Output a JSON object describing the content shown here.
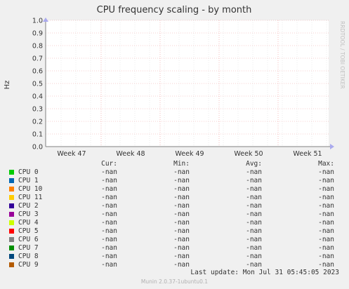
{
  "chart_data": {
    "type": "line",
    "title": "CPU frequency scaling - by month",
    "ylabel": "Hz",
    "watermark": "RRDTOOL / TOBI OETIKER",
    "ylim": [
      0.0,
      1.0
    ],
    "yticks": [
      "0.0",
      "0.1",
      "0.2",
      "0.3",
      "0.4",
      "0.5",
      "0.6",
      "0.7",
      "0.8",
      "0.9",
      "1.0"
    ],
    "xticks": [
      "Week 47",
      "Week 48",
      "Week 49",
      "Week 50",
      "Week 51"
    ],
    "grid": true,
    "series": [
      {
        "name": "CPU 0",
        "color": "#00cc00",
        "values": []
      },
      {
        "name": "CPU 1",
        "color": "#0066b3",
        "values": []
      },
      {
        "name": "CPU 10",
        "color": "#ff8000",
        "values": []
      },
      {
        "name": "CPU 11",
        "color": "#ffcc00",
        "values": []
      },
      {
        "name": "CPU 2",
        "color": "#330099",
        "values": []
      },
      {
        "name": "CPU 3",
        "color": "#990099",
        "values": []
      },
      {
        "name": "CPU 4",
        "color": "#ccff00",
        "values": []
      },
      {
        "name": "CPU 5",
        "color": "#ff0000",
        "values": []
      },
      {
        "name": "CPU 6",
        "color": "#808080",
        "values": []
      },
      {
        "name": "CPU 7",
        "color": "#008f00",
        "values": []
      },
      {
        "name": "CPU 8",
        "color": "#00487d",
        "values": []
      },
      {
        "name": "CPU 9",
        "color": "#b35a00",
        "values": []
      }
    ]
  },
  "legend": {
    "headers": {
      "cur": "Cur:",
      "min": "Min:",
      "avg": "Avg:",
      "max": "Max:"
    },
    "rows": [
      {
        "name": "CPU 0",
        "color": "#00cc00",
        "cur": "-nan",
        "min": "-nan",
        "avg": "-nan",
        "max": "-nan"
      },
      {
        "name": "CPU 1",
        "color": "#0066b3",
        "cur": "-nan",
        "min": "-nan",
        "avg": "-nan",
        "max": "-nan"
      },
      {
        "name": "CPU 10",
        "color": "#ff8000",
        "cur": "-nan",
        "min": "-nan",
        "avg": "-nan",
        "max": "-nan"
      },
      {
        "name": "CPU 11",
        "color": "#ffcc00",
        "cur": "-nan",
        "min": "-nan",
        "avg": "-nan",
        "max": "-nan"
      },
      {
        "name": "CPU 2",
        "color": "#330099",
        "cur": "-nan",
        "min": "-nan",
        "avg": "-nan",
        "max": "-nan"
      },
      {
        "name": "CPU 3",
        "color": "#990099",
        "cur": "-nan",
        "min": "-nan",
        "avg": "-nan",
        "max": "-nan"
      },
      {
        "name": "CPU 4",
        "color": "#ccff00",
        "cur": "-nan",
        "min": "-nan",
        "avg": "-nan",
        "max": "-nan"
      },
      {
        "name": "CPU 5",
        "color": "#ff0000",
        "cur": "-nan",
        "min": "-nan",
        "avg": "-nan",
        "max": "-nan"
      },
      {
        "name": "CPU 6",
        "color": "#808080",
        "cur": "-nan",
        "min": "-nan",
        "avg": "-nan",
        "max": "-nan"
      },
      {
        "name": "CPU 7",
        "color": "#008f00",
        "cur": "-nan",
        "min": "-nan",
        "avg": "-nan",
        "max": "-nan"
      },
      {
        "name": "CPU 8",
        "color": "#00487d",
        "cur": "-nan",
        "min": "-nan",
        "avg": "-nan",
        "max": "-nan"
      },
      {
        "name": "CPU 9",
        "color": "#b35a00",
        "cur": "-nan",
        "min": "-nan",
        "avg": "-nan",
        "max": "-nan"
      }
    ]
  },
  "last_update": "Last update: Mon Jul 31 05:45:05 2023",
  "footer": "Munin 2.0.37-1ubuntu0.1"
}
